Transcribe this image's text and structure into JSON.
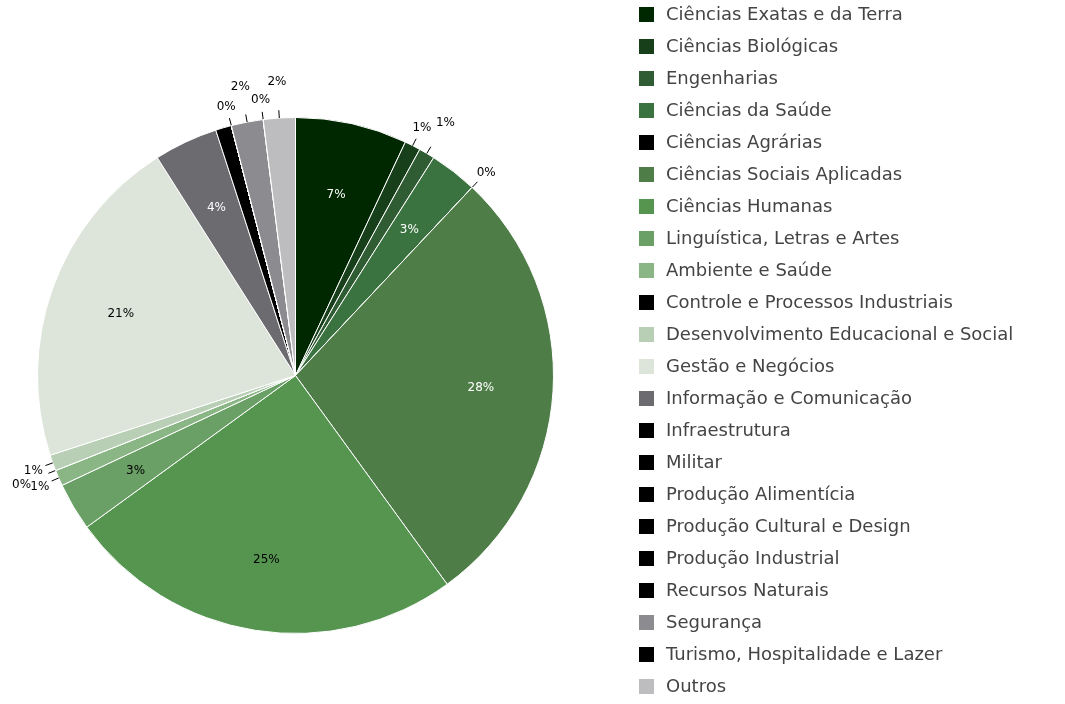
{
  "chart_data": {
    "type": "pie",
    "categories": [
      "Ciências Exatas e da Terra",
      "Ciências Biológicas",
      "Engenharias",
      "Ciências da Saúde",
      "Ciências Agrárias",
      "Ciências Sociais Aplicadas",
      "Ciências Humanas",
      "Linguística, Letras e Artes",
      "Ambiente e Saúde",
      "Controle e Processos Industriais",
      "Desenvolvimento Educacional e Social",
      "Gestão e Negócios",
      "Informação e Comunicação",
      "Infraestrutura",
      "Militar",
      "Produção Alimentícia",
      "Produção Cultural e Design",
      "Produção Industrial",
      "Recursos Naturais",
      "Segurança",
      "Turismo, Hospitalidade e Lazer",
      "Outros"
    ],
    "values": [
      7,
      1,
      1,
      3,
      0,
      28,
      25,
      3,
      1,
      0,
      1,
      21,
      4,
      1,
      0,
      0,
      0,
      0,
      0,
      2,
      0,
      2
    ],
    "value_labels": [
      "7%",
      "1%",
      "1%",
      "3%",
      "0%",
      "28%",
      "25%",
      "3%",
      "1%",
      "0%",
      "1%",
      "21%",
      "4%",
      null,
      null,
      null,
      null,
      null,
      "0%",
      "2%",
      "0%",
      "2%"
    ],
    "colors": [
      "#002800",
      "#17401a",
      "#2f5c32",
      "#3b7340",
      "#000000",
      "#4e7d48",
      "#559550",
      "#6a9f65",
      "#8ab585",
      "#000000",
      "#b8cfb5",
      "#dde5db",
      "#6b6b70",
      "#000000",
      "#000000",
      "#000000",
      "#000000",
      "#000000",
      "#000000",
      "#8c8c90",
      "#000000",
      "#bdbdbf"
    ],
    "legend": "right"
  }
}
